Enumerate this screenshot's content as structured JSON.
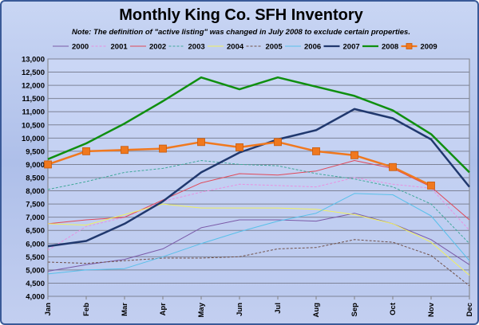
{
  "chart_data": {
    "type": "line",
    "title": "Monthly King Co. SFH Inventory",
    "subtitle": "Note: The definition of \"active listing\" was changed in July 2008  to exclude certain properties.",
    "xlabel": "",
    "ylabel": "",
    "categories": [
      "Jan",
      "Feb",
      "Mar",
      "Apr",
      "May",
      "Jun",
      "Jul",
      "Aug",
      "Sep",
      "Oct",
      "Nov",
      "Dec"
    ],
    "ylim": [
      4000,
      13000
    ],
    "yticks": [
      "4,000",
      "4,500",
      "5,000",
      "5,500",
      "6,000",
      "6,500",
      "7,000",
      "7,500",
      "8,000",
      "8,500",
      "9,000",
      "9,500",
      "10,000",
      "10,500",
      "11,000",
      "11,500",
      "12,000",
      "12,500",
      "13,000"
    ],
    "grid": true,
    "legend_position": "top",
    "series": [
      {
        "name": "2000",
        "color": "#7a5aa8",
        "style": "solid",
        "width": 1,
        "marker": "none",
        "values": [
          4950,
          5200,
          5400,
          5800,
          6600,
          6900,
          6900,
          6850,
          7150,
          6750,
          6150,
          5200
        ]
      },
      {
        "name": "2001",
        "color": "#e890e0",
        "style": "dashed",
        "width": 1,
        "marker": "none",
        "values": [
          5750,
          6650,
          7000,
          7600,
          7950,
          8250,
          8200,
          8150,
          8500,
          8250,
          8100,
          6500
        ]
      },
      {
        "name": "2002",
        "color": "#e04858",
        "style": "solid",
        "width": 1,
        "marker": "none",
        "values": [
          6750,
          6900,
          7000,
          7650,
          8300,
          8650,
          8600,
          8750,
          9150,
          8850,
          8150,
          6900
        ]
      },
      {
        "name": "2003",
        "color": "#40a89a",
        "style": "dashed",
        "width": 1,
        "marker": "none",
        "values": [
          8050,
          8350,
          8700,
          8850,
          9150,
          9000,
          8950,
          8650,
          8450,
          8150,
          7500,
          6000
        ]
      },
      {
        "name": "2004",
        "color": "#f0f060",
        "style": "solid",
        "width": 1,
        "marker": "none",
        "values": [
          6750,
          6700,
          7100,
          7500,
          7350,
          7350,
          7350,
          7300,
          7100,
          6750,
          6050,
          4800
        ]
      },
      {
        "name": "2005",
        "color": "#705048",
        "style": "dashed",
        "width": 1,
        "marker": "none",
        "values": [
          5300,
          5250,
          5350,
          5450,
          5450,
          5500,
          5800,
          5850,
          6150,
          6050,
          5550,
          4400
        ]
      },
      {
        "name": "2006",
        "color": "#58c0ea",
        "style": "solid",
        "width": 1,
        "marker": "none",
        "values": [
          4850,
          5000,
          5050,
          5500,
          6000,
          6450,
          6850,
          7150,
          7900,
          7850,
          7050,
          5350
        ]
      },
      {
        "name": "2007",
        "color": "#20386e",
        "style": "solid",
        "width": 2.5,
        "marker": "none",
        "values": [
          5900,
          6100,
          6750,
          7600,
          8700,
          9450,
          9950,
          10300,
          11100,
          10750,
          9950,
          8150
        ]
      },
      {
        "name": "2008",
        "color": "#0f8f0f",
        "style": "solid",
        "width": 2.5,
        "marker": "none",
        "values": [
          9200,
          9800,
          10550,
          11400,
          12300,
          11850,
          12300,
          11950,
          11600,
          11050,
          10150,
          8700
        ]
      },
      {
        "name": "2009",
        "color": "#f0781e",
        "style": "solid",
        "width": 2.5,
        "marker": "square",
        "values": [
          9000,
          9500,
          9550,
          9600,
          9850,
          9650,
          9850,
          9500,
          9350,
          8900,
          8200,
          null
        ]
      }
    ]
  }
}
